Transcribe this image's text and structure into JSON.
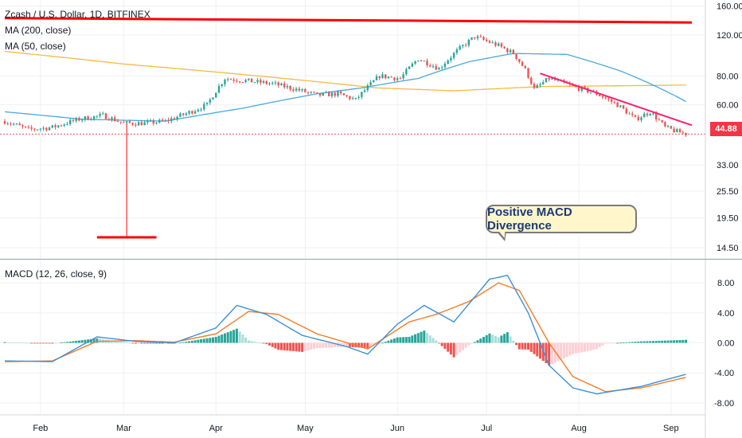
{
  "legend": {
    "symbol": "Zcash / U.S. Dollar, 1D, BITFINEX",
    "ma200": "MA (200, close)",
    "ma50": "MA (50, close)",
    "macd": "MACD (12, 26, close, 9)"
  },
  "callout": "Positive MACD Divergence",
  "last_price": "44.88",
  "colors": {
    "up": "#26a69a",
    "down": "#ef5350",
    "ma200": "#f5b941",
    "ma50": "#4aa8e0",
    "macd_line": "#3d8fd8",
    "signal_line": "#f57c25",
    "annotation": "#ff0000",
    "trendline": "#ff1f6e",
    "hist_pos_strong": "#26a69a",
    "hist_pos_weak": "#a7ded8",
    "hist_neg_strong": "#ef5350",
    "hist_neg_weak": "#ffcdd2"
  },
  "chart_data": [
    {
      "type": "candlestick",
      "title": "Zcash / U.S. Dollar, 1D, BITFINEX",
      "y_scale": "log",
      "ylim": [
        13.0,
        170.0
      ],
      "x_axis_labels": [
        "Feb",
        "Mar",
        "Apr",
        "May",
        "Jun",
        "Jul",
        "Aug",
        "Sep"
      ],
      "y_tick_labels": [
        "14.50",
        "19.50",
        "25.50",
        "33.00",
        "44.88",
        "60.00",
        "80.00",
        "120.00",
        "160.00"
      ],
      "y_ticks": [
        14.5,
        19.5,
        25.5,
        33.0,
        60.0,
        80.0,
        120.0,
        160.0
      ],
      "anchors": [
        {
          "d": "2019-01-20",
          "p": 51
        },
        {
          "d": "2019-01-28",
          "p": 47
        },
        {
          "d": "2019-02-05",
          "p": 48
        },
        {
          "d": "2019-02-14",
          "p": 52
        },
        {
          "d": "2019-02-22",
          "p": 54
        },
        {
          "d": "2019-03-01",
          "p": 50
        },
        {
          "d": "2019-03-08",
          "p": 50
        },
        {
          "d": "2019-03-15",
          "p": 51
        },
        {
          "d": "2019-03-22",
          "p": 55
        },
        {
          "d": "2019-03-29",
          "p": 60
        },
        {
          "d": "2019-04-04",
          "p": 78
        },
        {
          "d": "2019-04-12",
          "p": 76
        },
        {
          "d": "2019-04-20",
          "p": 74
        },
        {
          "d": "2019-04-28",
          "p": 70
        },
        {
          "d": "2019-05-05",
          "p": 66
        },
        {
          "d": "2019-05-12",
          "p": 67
        },
        {
          "d": "2019-05-18",
          "p": 63
        },
        {
          "d": "2019-05-26",
          "p": 80
        },
        {
          "d": "2019-06-02",
          "p": 78
        },
        {
          "d": "2019-06-08",
          "p": 95
        },
        {
          "d": "2019-06-15",
          "p": 86
        },
        {
          "d": "2019-06-22",
          "p": 105
        },
        {
          "d": "2019-06-27",
          "p": 118
        },
        {
          "d": "2019-07-05",
          "p": 108
        },
        {
          "d": "2019-07-10",
          "p": 100
        },
        {
          "d": "2019-07-14",
          "p": 85
        },
        {
          "d": "2019-07-17",
          "p": 70
        },
        {
          "d": "2019-07-22",
          "p": 78
        },
        {
          "d": "2019-07-30",
          "p": 72
        },
        {
          "d": "2019-08-07",
          "p": 67
        },
        {
          "d": "2019-08-14",
          "p": 60
        },
        {
          "d": "2019-08-20",
          "p": 52
        },
        {
          "d": "2019-08-25",
          "p": 56
        },
        {
          "d": "2019-08-30",
          "p": 48
        },
        {
          "d": "2019-09-03",
          "p": 46
        },
        {
          "d": "2019-09-06",
          "p": 45
        }
      ],
      "ma200_anchors": [
        {
          "d": "2019-01-20",
          "p": 102
        },
        {
          "d": "2019-03-01",
          "p": 90
        },
        {
          "d": "2019-04-15",
          "p": 80
        },
        {
          "d": "2019-05-25",
          "p": 71
        },
        {
          "d": "2019-06-20",
          "p": 69
        },
        {
          "d": "2019-07-20",
          "p": 72
        },
        {
          "d": "2019-09-06",
          "p": 73
        }
      ],
      "ma50_anchors": [
        {
          "d": "2019-01-20",
          "p": 56
        },
        {
          "d": "2019-02-15",
          "p": 52
        },
        {
          "d": "2019-03-15",
          "p": 51
        },
        {
          "d": "2019-04-10",
          "p": 58
        },
        {
          "d": "2019-05-05",
          "p": 67
        },
        {
          "d": "2019-05-20",
          "p": 71
        },
        {
          "d": "2019-06-08",
          "p": 78
        },
        {
          "d": "2019-06-25",
          "p": 92
        },
        {
          "d": "2019-07-10",
          "p": 100
        },
        {
          "d": "2019-07-28",
          "p": 99
        },
        {
          "d": "2019-08-15",
          "p": 84
        },
        {
          "d": "2019-09-06",
          "p": 62
        }
      ],
      "annotations": {
        "resistance": [
          {
            "d": "2019-01-20",
            "p": 142
          },
          {
            "d": "2019-09-08",
            "p": 136
          }
        ],
        "trendline": [
          {
            "d": "2019-07-19",
            "p": 82
          },
          {
            "d": "2019-09-08",
            "p": 49
          }
        ],
        "low_marker": {
          "d": "2019-03-02",
          "low": 16.1,
          "high": 50,
          "seg_start": "2019-02-20",
          "seg_end": "2019-03-12"
        }
      },
      "last_value": 44.88
    },
    {
      "type": "macd",
      "title": "MACD (12, 26, close, 9)",
      "ylim": [
        -9.5,
        11.0
      ],
      "y_tick_labels": [
        "-8.00",
        "-4.00",
        "0.00",
        "4.00",
        "8.00"
      ],
      "y_ticks": [
        -8,
        -4,
        0,
        4,
        8
      ],
      "macd_anchors": [
        {
          "d": "2019-01-20",
          "v": -2.4
        },
        {
          "d": "2019-02-05",
          "v": -2.5
        },
        {
          "d": "2019-02-20",
          "v": 0.8
        },
        {
          "d": "2019-03-05",
          "v": 0.2
        },
        {
          "d": "2019-03-18",
          "v": 0.0
        },
        {
          "d": "2019-04-01",
          "v": 2.0
        },
        {
          "d": "2019-04-08",
          "v": 5.0
        },
        {
          "d": "2019-04-18",
          "v": 3.8
        },
        {
          "d": "2019-04-30",
          "v": 1.0
        },
        {
          "d": "2019-05-15",
          "v": -0.5
        },
        {
          "d": "2019-05-22",
          "v": -1.5
        },
        {
          "d": "2019-06-01",
          "v": 2.5
        },
        {
          "d": "2019-06-10",
          "v": 5.0
        },
        {
          "d": "2019-06-20",
          "v": 2.8
        },
        {
          "d": "2019-07-02",
          "v": 8.5
        },
        {
          "d": "2019-07-08",
          "v": 9.0
        },
        {
          "d": "2019-07-15",
          "v": 4.0
        },
        {
          "d": "2019-07-22",
          "v": -3.0
        },
        {
          "d": "2019-07-30",
          "v": -6.0
        },
        {
          "d": "2019-08-07",
          "v": -6.8
        },
        {
          "d": "2019-08-22",
          "v": -5.8
        },
        {
          "d": "2019-09-06",
          "v": -4.2
        }
      ],
      "signal_anchors": [
        {
          "d": "2019-01-20",
          "v": -2.5
        },
        {
          "d": "2019-02-05",
          "v": -2.4
        },
        {
          "d": "2019-02-20",
          "v": 0.2
        },
        {
          "d": "2019-03-05",
          "v": 0.3
        },
        {
          "d": "2019-03-18",
          "v": 0.1
        },
        {
          "d": "2019-04-01",
          "v": 1.2
        },
        {
          "d": "2019-04-12",
          "v": 4.2
        },
        {
          "d": "2019-04-22",
          "v": 3.8
        },
        {
          "d": "2019-05-05",
          "v": 1.2
        },
        {
          "d": "2019-05-22",
          "v": -0.8
        },
        {
          "d": "2019-06-05",
          "v": 2.8
        },
        {
          "d": "2019-06-14",
          "v": 3.8
        },
        {
          "d": "2019-06-25",
          "v": 5.5
        },
        {
          "d": "2019-07-05",
          "v": 8.0
        },
        {
          "d": "2019-07-12",
          "v": 7.0
        },
        {
          "d": "2019-07-22",
          "v": 0.0
        },
        {
          "d": "2019-07-30",
          "v": -4.5
        },
        {
          "d": "2019-08-10",
          "v": -6.5
        },
        {
          "d": "2019-08-22",
          "v": -6.0
        },
        {
          "d": "2019-09-06",
          "v": -4.6
        }
      ]
    }
  ]
}
